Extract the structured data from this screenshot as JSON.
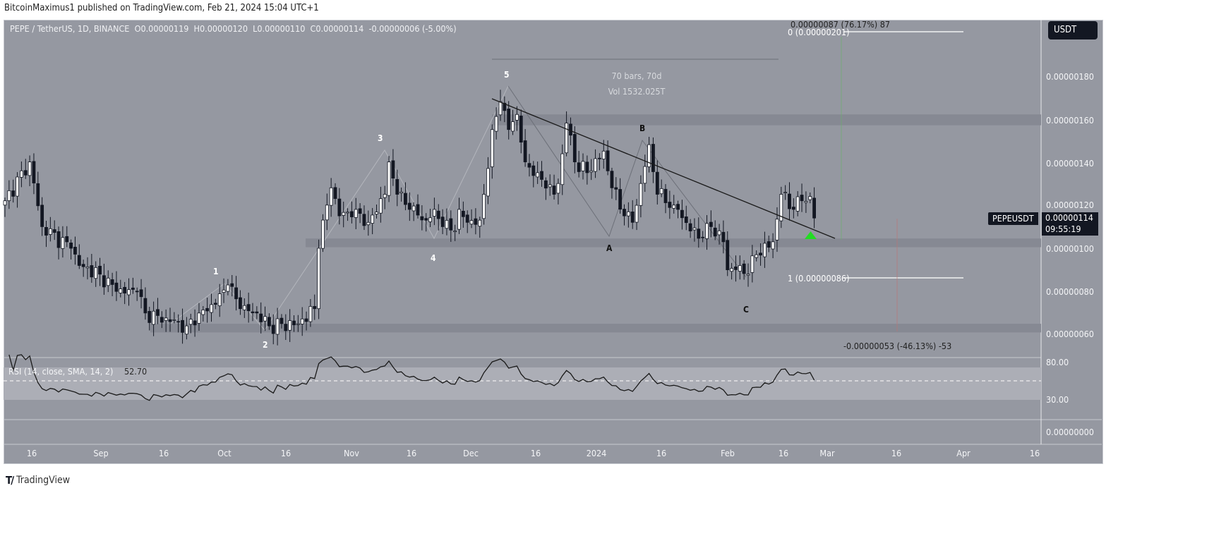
{
  "publisher": "BitcoinMaximus1 published on TradingView.com, Feb 21, 2024 15:04 UTC+1",
  "legend": {
    "symbol": "PEPE / TetherUS, 1D, BINANCE",
    "o_key": "O",
    "o": "0.00000119",
    "h_key": "H",
    "h": "0.00000120",
    "l_key": "L",
    "l": "0.00000110",
    "c_key": "C",
    "c": "0.00000114",
    "change": "-0.00000006 (-5.00%)"
  },
  "currency_button": "USDT",
  "last_price": {
    "symbol": "PEPEUSDT",
    "price": "0.00000114",
    "countdown": "09:55:19"
  },
  "price_axis": [
    "0.00000180",
    "0.00000160",
    "0.00000140",
    "0.00000120",
    "0.00000100",
    "0.00000080",
    "0.00000060"
  ],
  "rsi": {
    "label": "RSI (14, close, SMA, 14, 2)",
    "value": "52.70",
    "axis": [
      "80.00",
      "30.00"
    ]
  },
  "lower_pane_axis": "0.00000000",
  "time_axis": [
    "16",
    "Sep",
    "16",
    "Oct",
    "16",
    "Nov",
    "16",
    "Dec",
    "16",
    "2024",
    "16",
    "Feb",
    "16",
    "Mar",
    "16",
    "Apr",
    "16"
  ],
  "annotations": {
    "measure_bars": "70 bars, 70d",
    "measure_vol": "Vol 1532.025T",
    "fib_0": "0 (0.00000201)",
    "fib_1": "1 (0.00000086)",
    "range_up": "0.00000087 (76.17%) 87",
    "range_down": "-0.00000053 (-46.13%) -53",
    "waves": [
      "1",
      "2",
      "3",
      "4",
      "5",
      "A",
      "B",
      "C"
    ]
  },
  "colors": {
    "background": "#9598a1",
    "zone": "#868993",
    "up": "#ffffff",
    "down": "#131722",
    "signal": "#22dd22"
  },
  "footer": "TradingView",
  "chart_data": {
    "type": "candlestick",
    "title": "PEPE / TetherUS, 1D, BINANCE",
    "unit": "1e-8 USDT",
    "start_date": "2023-08-09",
    "end_date": "2024-02-21",
    "ylim": [
      50,
      200
    ],
    "close_keypoints": [
      [
        0,
        122
      ],
      [
        6,
        140
      ],
      [
        9,
        110
      ],
      [
        16,
        100
      ],
      [
        18,
        92
      ],
      [
        23,
        88
      ],
      [
        27,
        80
      ],
      [
        32,
        80
      ],
      [
        34,
        70
      ],
      [
        40,
        66
      ],
      [
        44,
        64
      ],
      [
        47,
        70
      ],
      [
        51,
        74
      ],
      [
        54,
        83
      ],
      [
        57,
        72
      ],
      [
        61,
        70
      ],
      [
        64,
        64
      ],
      [
        71,
        65
      ],
      [
        75,
        72
      ],
      [
        76,
        100
      ],
      [
        78,
        120
      ],
      [
        79,
        128
      ],
      [
        81,
        115
      ],
      [
        85,
        118
      ],
      [
        88,
        112
      ],
      [
        92,
        125
      ],
      [
        93,
        140
      ],
      [
        95,
        125
      ],
      [
        98,
        118
      ],
      [
        102,
        113
      ],
      [
        104,
        118
      ],
      [
        106,
        110
      ],
      [
        109,
        108
      ],
      [
        110,
        118
      ],
      [
        112,
        112
      ],
      [
        115,
        113
      ],
      [
        116,
        125
      ],
      [
        118,
        155
      ],
      [
        120,
        168
      ],
      [
        122,
        155
      ],
      [
        124,
        162
      ],
      [
        126,
        140
      ],
      [
        129,
        135
      ],
      [
        133,
        125
      ],
      [
        134,
        130
      ],
      [
        136,
        158
      ],
      [
        138,
        140
      ],
      [
        141,
        135
      ],
      [
        145,
        145
      ],
      [
        147,
        128
      ],
      [
        150,
        115
      ],
      [
        152,
        112
      ],
      [
        154,
        130
      ],
      [
        156,
        148
      ],
      [
        158,
        125
      ],
      [
        162,
        120
      ],
      [
        163,
        118
      ],
      [
        166,
        108
      ],
      [
        169,
        105
      ],
      [
        171,
        110
      ],
      [
        174,
        103
      ],
      [
        175,
        90
      ],
      [
        178,
        92
      ],
      [
        180,
        88
      ],
      [
        182,
        97
      ],
      [
        186,
        103
      ],
      [
        188,
        125
      ],
      [
        191,
        118
      ],
      [
        193,
        122
      ],
      [
        195,
        124
      ],
      [
        196,
        114
      ]
    ],
    "zones": [
      [
        157,
        162
      ],
      [
        100.5,
        104.5
      ],
      [
        61,
        65
      ]
    ],
    "rsi_last": 52.7
  }
}
